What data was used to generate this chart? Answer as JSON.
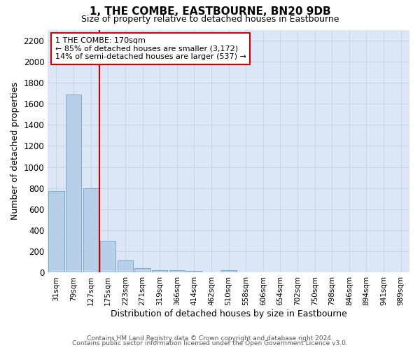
{
  "title": "1, THE COMBE, EASTBOURNE, BN20 9DB",
  "subtitle": "Size of property relative to detached houses in Eastbourne",
  "xlabel": "Distribution of detached houses by size in Eastbourne",
  "ylabel": "Number of detached properties",
  "bar_color": "#b8cfe8",
  "bar_edge_color": "#7aaad0",
  "categories": [
    "31sqm",
    "79sqm",
    "127sqm",
    "175sqm",
    "223sqm",
    "271sqm",
    "319sqm",
    "366sqm",
    "414sqm",
    "462sqm",
    "510sqm",
    "558sqm",
    "606sqm",
    "654sqm",
    "702sqm",
    "750sqm",
    "798sqm",
    "846sqm",
    "894sqm",
    "941sqm",
    "989sqm"
  ],
  "values": [
    770,
    1685,
    800,
    300,
    115,
    40,
    25,
    20,
    15,
    5,
    20,
    5,
    0,
    0,
    0,
    0,
    0,
    0,
    0,
    0,
    0
  ],
  "vline_color": "#cc0000",
  "annotation_line1": "1 THE COMBE: 170sqm",
  "annotation_line2": "← 85% of detached houses are smaller (3,172)",
  "annotation_line3": "14% of semi-detached houses are larger (537) →",
  "annotation_box_color": "#ffffff",
  "annotation_box_edge": "#cc0000",
  "ylim": [
    0,
    2300
  ],
  "yticks": [
    0,
    200,
    400,
    600,
    800,
    1000,
    1200,
    1400,
    1600,
    1800,
    2000,
    2200
  ],
  "grid_color": "#c8d4e8",
  "background_color": "#dce6f5",
  "footer_line1": "Contains HM Land Registry data © Crown copyright and database right 2024.",
  "footer_line2": "Contains public sector information licensed under the Open Government Licence v3.0."
}
